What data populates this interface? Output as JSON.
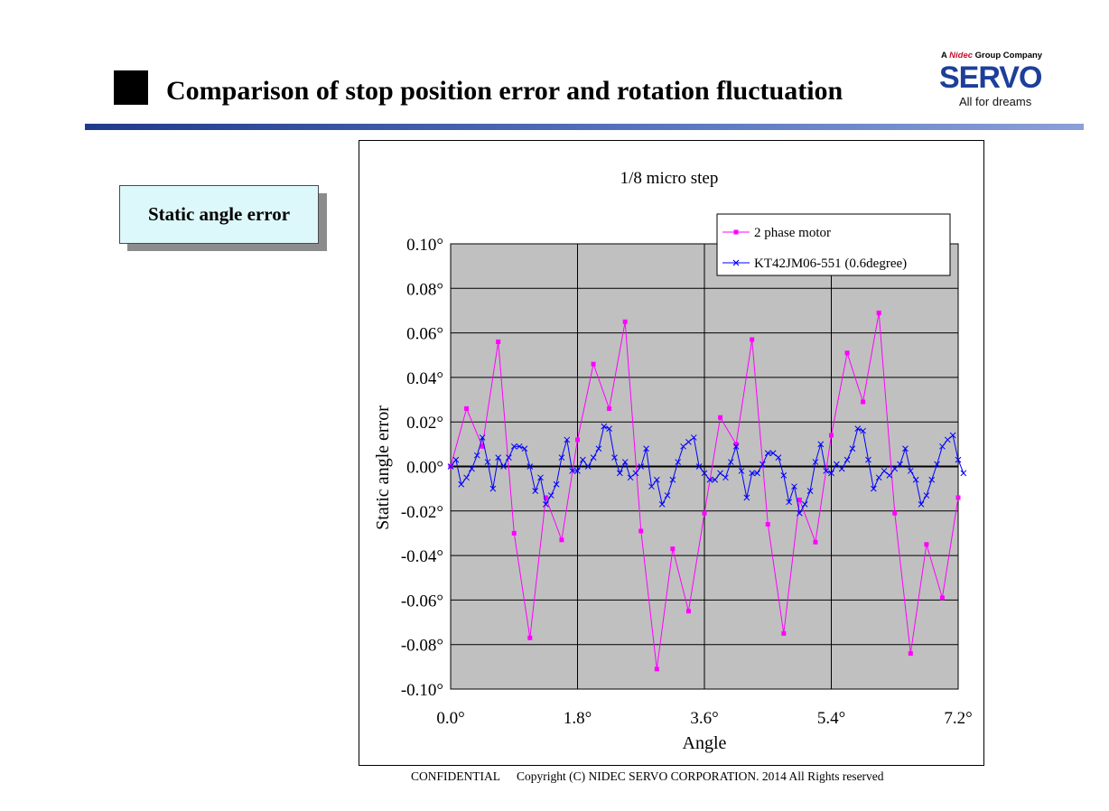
{
  "header": {
    "title": "Comparison of stop position error and rotation fluctuation",
    "logo": {
      "group_prefix": "A",
      "group_brand": "Nidec",
      "group_suffix": "Group Company",
      "wordmark": "SERVO",
      "tagline": "All for dreams"
    }
  },
  "label_box": "Static angle error",
  "footer": {
    "confidential": "CONFIDENTIAL",
    "copyright": "Copyright (C) NIDEC SERVO CORPORATION. 2014 All Rights reserved"
  },
  "colors": {
    "plot_bg": "#c0c0c0",
    "series1": "#ff00ff",
    "series2": "#0000ff",
    "title_rule": "#1f3a8a",
    "label_box_bg": "#ddf8fb"
  },
  "chart_data": {
    "type": "line",
    "title": "1/8 micro step",
    "xlabel": "Angle",
    "ylabel": "Static angle error",
    "xlim": [
      0,
      7.2
    ],
    "ylim": [
      -0.1,
      0.1
    ],
    "xticks": [
      0,
      1.8,
      3.6,
      5.4,
      7.2
    ],
    "xtick_labels": [
      "0.0°",
      "1.8°",
      "3.6°",
      "5.4°",
      "7.2°"
    ],
    "yticks": [
      0.1,
      0.08,
      0.06,
      0.04,
      0.02,
      0,
      -0.02,
      -0.04,
      -0.06,
      -0.08,
      -0.1
    ],
    "ytick_labels": [
      "0.10°",
      "0.08°",
      "0.06°",
      "0.04°",
      "0.02°",
      "0.00°",
      "-0.02°",
      "-0.04°",
      "-0.06°",
      "-0.08°",
      "-0.10°"
    ],
    "grid": true,
    "legend_position": "top-right",
    "series": [
      {
        "name": "2 phase motor",
        "marker": "square",
        "x": [
          0,
          0.225,
          0.45,
          0.675,
          0.9,
          1.125,
          1.35,
          1.575,
          1.8,
          2.025,
          2.25,
          2.475,
          2.7,
          2.925,
          3.15,
          3.375,
          3.6,
          3.825,
          4.05,
          4.275,
          4.5,
          4.725,
          4.95,
          5.175,
          5.4,
          5.625,
          5.85,
          6.075,
          6.3,
          6.525,
          6.75,
          6.975,
          7.2
        ],
        "y": [
          0.0,
          0.026,
          0.009,
          0.056,
          -0.03,
          -0.077,
          -0.014,
          -0.033,
          0.012,
          0.046,
          0.026,
          0.065,
          -0.029,
          -0.091,
          -0.037,
          -0.065,
          -0.021,
          0.022,
          0.01,
          0.057,
          -0.026,
          -0.075,
          -0.015,
          -0.034,
          0.014,
          0.051,
          0.029,
          0.069,
          -0.021,
          -0.084,
          -0.035,
          -0.059,
          -0.014
        ]
      },
      {
        "name": "KT42JM06-551 (0.6degree)",
        "marker": "x",
        "x": [
          0,
          0.075,
          0.15,
          0.225,
          0.3,
          0.375,
          0.45,
          0.525,
          0.6,
          0.675,
          0.75,
          0.825,
          0.9,
          0.975,
          1.05,
          1.125,
          1.2,
          1.275,
          1.35,
          1.425,
          1.5,
          1.575,
          1.65,
          1.725,
          1.8,
          1.875,
          1.95,
          2.025,
          2.1,
          2.175,
          2.25,
          2.325,
          2.4,
          2.475,
          2.55,
          2.625,
          2.7,
          2.775,
          2.85,
          2.925,
          3.0,
          3.075,
          3.15,
          3.225,
          3.3,
          3.375,
          3.45,
          3.525,
          3.6,
          3.675,
          3.75,
          3.825,
          3.9,
          3.975,
          4.05,
          4.125,
          4.2,
          4.275,
          4.35,
          4.425,
          4.5,
          4.575,
          4.65,
          4.725,
          4.8,
          4.875,
          4.95,
          5.025,
          5.1,
          5.175,
          5.25,
          5.325,
          5.4,
          5.475,
          5.55,
          5.625,
          5.7,
          5.775,
          5.85,
          5.925,
          6.0,
          6.075,
          6.15,
          6.225,
          6.3,
          6.375,
          6.45,
          6.525,
          6.6,
          6.675,
          6.75,
          6.825,
          6.9,
          6.975,
          7.05,
          7.125,
          7.2,
          7.275
        ],
        "y": [
          0.0,
          0.003,
          -0.008,
          -0.005,
          -0.001,
          0.005,
          0.013,
          0.002,
          -0.01,
          0.004,
          0.0,
          0.004,
          0.009,
          0.009,
          0.008,
          0.0,
          -0.011,
          -0.005,
          -0.017,
          -0.013,
          -0.008,
          0.004,
          0.012,
          -0.002,
          -0.002,
          0.003,
          0.0,
          0.004,
          0.008,
          0.018,
          0.017,
          0.004,
          -0.003,
          0.002,
          -0.005,
          -0.003,
          0.0,
          0.008,
          -0.009,
          -0.006,
          -0.017,
          -0.013,
          -0.006,
          0.002,
          0.009,
          0.011,
          0.013,
          0.0,
          -0.003,
          -0.006,
          -0.006,
          -0.003,
          -0.005,
          0.002,
          0.009,
          -0.002,
          -0.014,
          -0.003,
          -0.003,
          0.001,
          0.006,
          0.006,
          0.004,
          -0.004,
          -0.016,
          -0.009,
          -0.021,
          -0.017,
          -0.011,
          0.002,
          0.01,
          -0.002,
          -0.003,
          0.001,
          -0.001,
          0.003,
          0.008,
          0.017,
          0.016,
          0.003,
          -0.01,
          -0.005,
          -0.002,
          -0.004,
          -0.001,
          0.001,
          0.008,
          -0.002,
          -0.006,
          -0.017,
          -0.013,
          -0.006,
          0.001,
          0.009,
          0.012,
          0.014,
          0.003,
          -0.003
        ]
      }
    ]
  }
}
